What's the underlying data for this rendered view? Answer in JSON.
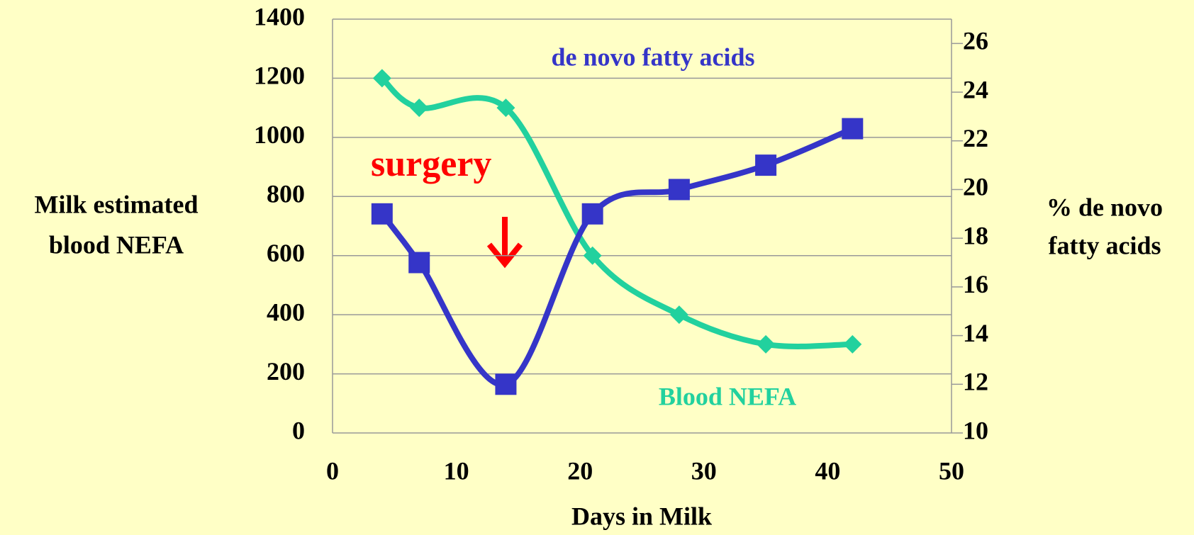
{
  "chart_data": {
    "type": "line",
    "xlabel": "Days in Milk",
    "ylabel": [
      "Milk estimated",
      "blood NEFA"
    ],
    "y2label": [
      "% de novo",
      "fatty acids"
    ],
    "annotation": "surgery",
    "x": [
      4,
      7,
      14,
      21,
      28,
      35,
      42
    ],
    "series": [
      {
        "name": "Blood NEFA",
        "color": "#22d19e",
        "values": [
          1200,
          1100,
          1100,
          600,
          400,
          300,
          300
        ]
      },
      {
        "name": "de novo fatty acids",
        "color": "#3535c8",
        "axis": "y2",
        "values": [
          19.0,
          17.0,
          12.0,
          19.0,
          20.0,
          21.0,
          22.5
        ]
      }
    ],
    "xlim": [
      0,
      50
    ],
    "xticks": [
      0,
      10,
      20,
      30,
      40,
      50
    ],
    "ylim": [
      0,
      1400
    ],
    "yticks": [
      0,
      200,
      400,
      600,
      800,
      1000,
      1200,
      1400
    ],
    "y2lim": [
      10,
      27
    ],
    "y2ticks": [
      10,
      12,
      14,
      16,
      18,
      20,
      22,
      24,
      26
    ],
    "grid": true
  }
}
